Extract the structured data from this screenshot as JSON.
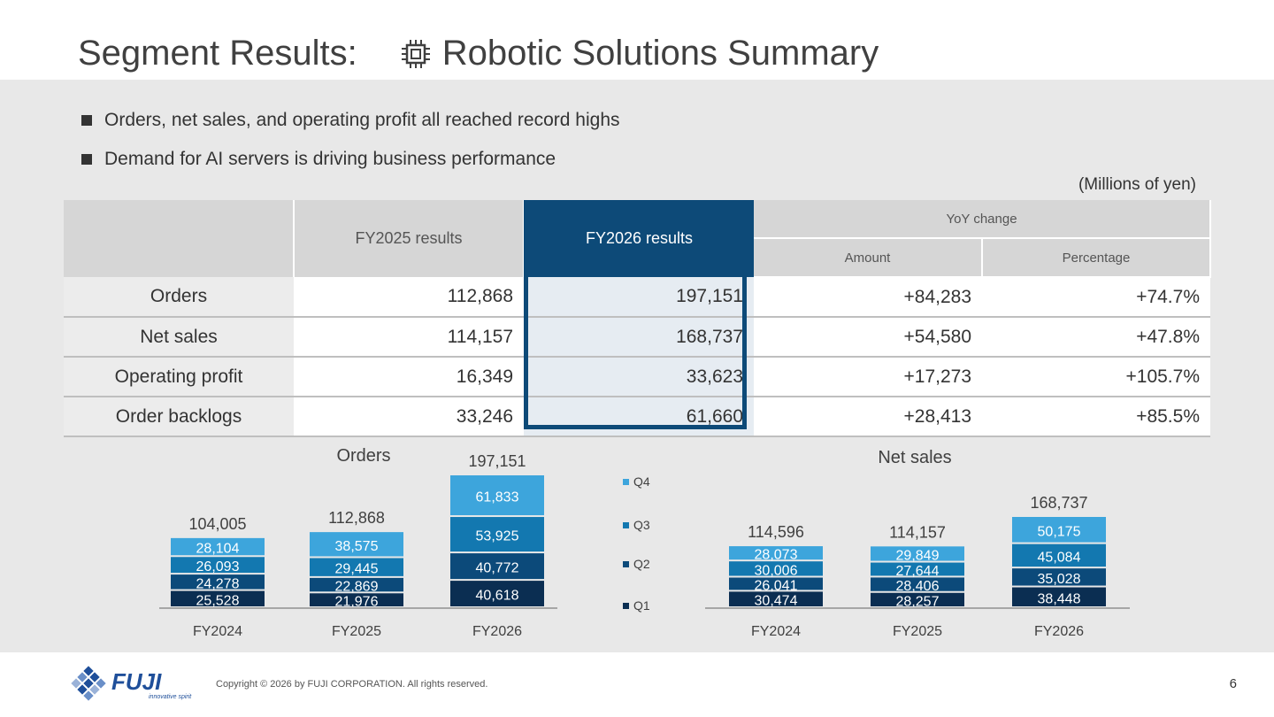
{
  "title": {
    "part1": "Segment Results:",
    "part2": "Robotic Solutions Summary"
  },
  "bullets": [
    "Orders, net sales, and operating profit all reached record highs",
    "Demand for AI servers is driving business performance"
  ],
  "units": "(Millions of yen)",
  "table": {
    "headers": {
      "fy2025": "FY2025 results",
      "fy2026": "FY2026 results",
      "yoy": "YoY change",
      "amount": "Amount",
      "percentage": "Percentage"
    },
    "rows": [
      {
        "label": "Orders",
        "fy2025": "112,868",
        "fy2026": "197,151",
        "amount": "+84,283",
        "pct": "+74.7%"
      },
      {
        "label": "Net sales",
        "fy2025": "114,157",
        "fy2026": "168,737",
        "amount": "+54,580",
        "pct": "+47.8%"
      },
      {
        "label": "Operating profit",
        "fy2025": "16,349",
        "fy2026": "33,623",
        "amount": "+17,273",
        "pct": "+105.7%"
      },
      {
        "label": "Order backlogs",
        "fy2025": "33,246",
        "fy2026": "61,660",
        "amount": "+28,413",
        "pct": "+85.5%"
      }
    ]
  },
  "colors": {
    "q1": "#0b2e52",
    "q2": "#0c4a7a",
    "q3": "#1378b0",
    "q4": "#3da5dc",
    "accent": "#0d4a78"
  },
  "chart_data": [
    {
      "type": "bar",
      "stacked": true,
      "title": "Orders",
      "categories": [
        "FY2024",
        "FY2025",
        "FY2026"
      ],
      "totals": [
        104005,
        112868,
        197151
      ],
      "series": [
        {
          "name": "Q1",
          "values": [
            25528,
            21976,
            40618
          ]
        },
        {
          "name": "Q2",
          "values": [
            24278,
            22869,
            40772
          ]
        },
        {
          "name": "Q3",
          "values": [
            26093,
            29445,
            53925
          ]
        },
        {
          "name": "Q4",
          "values": [
            28104,
            38575,
            61833
          ]
        }
      ],
      "legend": "between charts"
    },
    {
      "type": "bar",
      "stacked": true,
      "title": "Net sales",
      "categories": [
        "FY2024",
        "FY2025",
        "FY2026"
      ],
      "totals": [
        114596,
        114157,
        168737
      ],
      "series": [
        {
          "name": "Q1",
          "values": [
            30474,
            28257,
            38448
          ]
        },
        {
          "name": "Q2",
          "values": [
            26041,
            28406,
            35028
          ]
        },
        {
          "name": "Q3",
          "values": [
            30006,
            27644,
            45084
          ]
        },
        {
          "name": "Q4",
          "values": [
            28073,
            29849,
            50175
          ]
        }
      ],
      "legend": "between charts"
    }
  ],
  "legend_items": [
    "Q4",
    "Q3",
    "Q2",
    "Q1"
  ],
  "footer": {
    "logo_text": "FUJI",
    "tagline": "innovative spirit",
    "copyright": "Copyright © 2026 by FUJI CORPORATION. All rights reserved.",
    "page": "6"
  }
}
